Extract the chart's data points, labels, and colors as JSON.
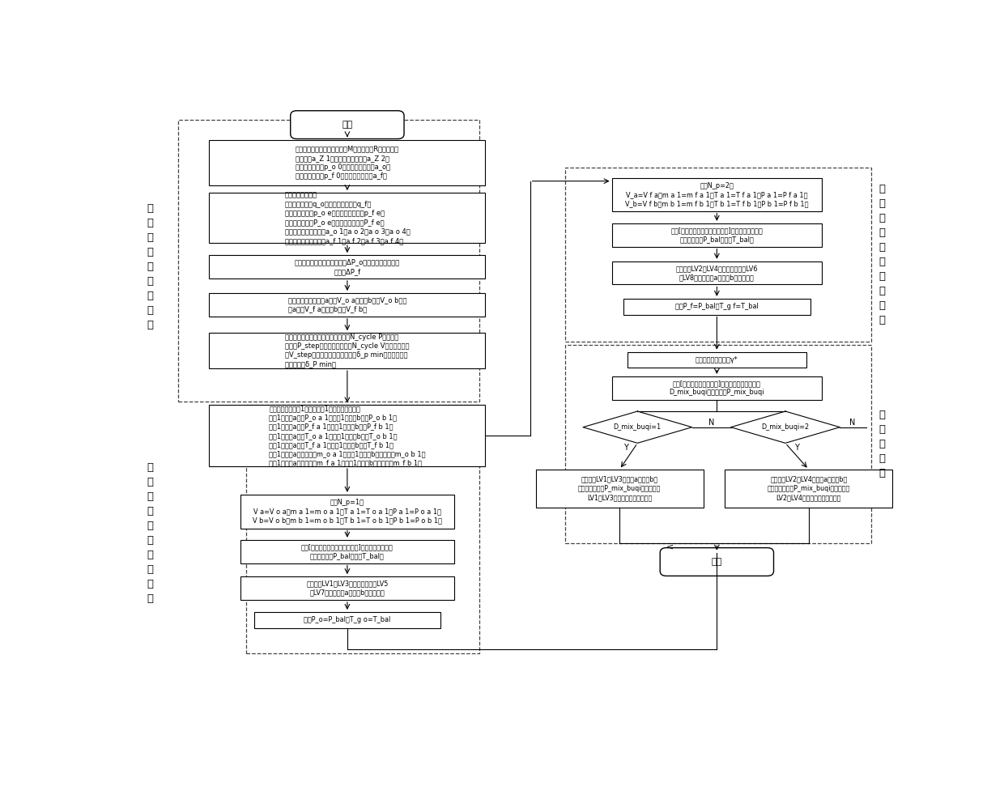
{
  "bg_color": "#ffffff",
  "box1_text": "设定工质参数：气体摩尔质量M、气体常数R、气体压缩\n因子系数a_Z 1、气体压缩因子指数a_Z 2；\n氧化剂基准密度p_o 0、氧化剂密度系数a_o；\n燃烧剂基准密度p_f 0、燃烧剂密度系数a_f。",
  "box2_text": "设定发动机参数：\n额定氧化剂流量q_o、额定燃烧剂流量q_f，\n氧化剂额定密度p_o e、燃烧剂额定密度p_f e，\n氧入口额定压力P_o e、燃入口额定压力P_f e，\n氧流量小偏差方程系数a_o 1、a o 2、a o 3、a o 4，\n燃流量小偏差方程系数a_f 1、a f 2、a f 3、a f 4。",
  "box3_text": "设定氧箱至发动机氧入口压降ΔP_o，燃箱至发动机燃入\n口压降ΔP_f",
  "box4_text": "设定贮箱参数：氧箱a容积V_o a、氧箱b容积V_o b、燃\n箱a容积V_f a、燃箱b容积V_f b。",
  "box5_text": "设定求解精度参数：压力循环总次数N_cycle P、压力循\n环步长P_step、体积循环总次数N_cycle V、体积循环步\n长V_step、气体密度残差收敛标准δ_p min、气体压力残\n差收敛标准δ_P min。",
  "box6_text": "定义控制前为状态1，设定状态1下贮箱状态参数：\n状态1下氧箱a压力P_o a 1、状态1下氧箱b压力P_o b 1、\n状态1下燃箱a压力P_f a 1、状态1下燃箱b压力P_f b 1；\n状态1下氧箱a温度T_o a 1、状态1下氧箱b温度T_o b 1、\n状态1下燃箱a温度T_f a 1、状态1下燃箱b温度T_f b 1；\n状态1下氧箱a推进剂质量m_o a 1、状态1下氧箱b推进剂质量m_o b 1、\n状态1下燃箱a推进剂质量m_f a 1、状态1下燃箱b推进剂质量m_f b 1。",
  "box7_text": "设定N_p=1；\nV a=V o a，m a 1=m o a 1，T a 1=T o a 1，P a 1=P o a 1；\nV b=V o b，m b 1=m o b 1，T b 1=T o b 1，P b 1=P o b 1。",
  "box8_text": "根据[并联贮箱平衡压力计算流程]计算确定并联氧箱\n平衡后的压力P_bal和温度T_bal。",
  "box9_text": "在自锁阀LV1和LV3关闭状态下，开LV5\n和LV7，直至氧箱a和氧箱b压力平衡。",
  "box10_text": "设定P_o=P_bal，T_g o=T_bal",
  "box11_text": "设定N_p=2；\nV_a=V f a，m a 1=m f a 1，T a 1=T f a 1，P a 1=P f a 1；\nV_b=V f b，m b 1=m f b 1，T b 1=T f b 1，P b 1=P f b 1。",
  "box12_text": "根据[并联贮箱平衡压力计算流程]计算确定并联燃箱\n平衡后的压力P_bal和温度T_bal。",
  "box13_text": "在自锁阀LV2和LV4关闭状态下，开LV6\n和LV8，直至燃箱a和燃箱b压力平衡。",
  "box14_text": "设定P_f=P_bal，T_g f=T_bal",
  "box15_text": "设定混合比控制目标γ*",
  "box16_text": "根据[混合比控制计算流程]确定需充气的贮箱标志\nD_mix_buqi和充气压力P_mix_buqi",
  "box17_text": "开自锁阀LV1和LV3将氧箱a和氧箱b补\n气，直至压力至P_mix_buqi，之后关闭\nLV1和LV3，即完成混合比控制。",
  "box18_text": "开自锁阀LV2和LV4将燃箱a和燃箱b补\n气，直至压力至P_mix_buqi，之后关闭\nLV2和LV4，即完成混合比控制。",
  "d1_text": "D_mix_buqi=1",
  "d2_text": "D_mix_buqi=2",
  "label_left1": "控\n制\n前\n状\n态\n参\n数\n设\n定",
  "label_left2": "并\n联\n氧\n箱\n平\n衡\n压\n力\n计\n算",
  "label_right1": "并\n联\n燃\n箱\n平\n衡\n压\n力\n计\n算",
  "label_right2": "混\n合\n比\n控\n制",
  "start_text": "开始",
  "end_text": "结束"
}
